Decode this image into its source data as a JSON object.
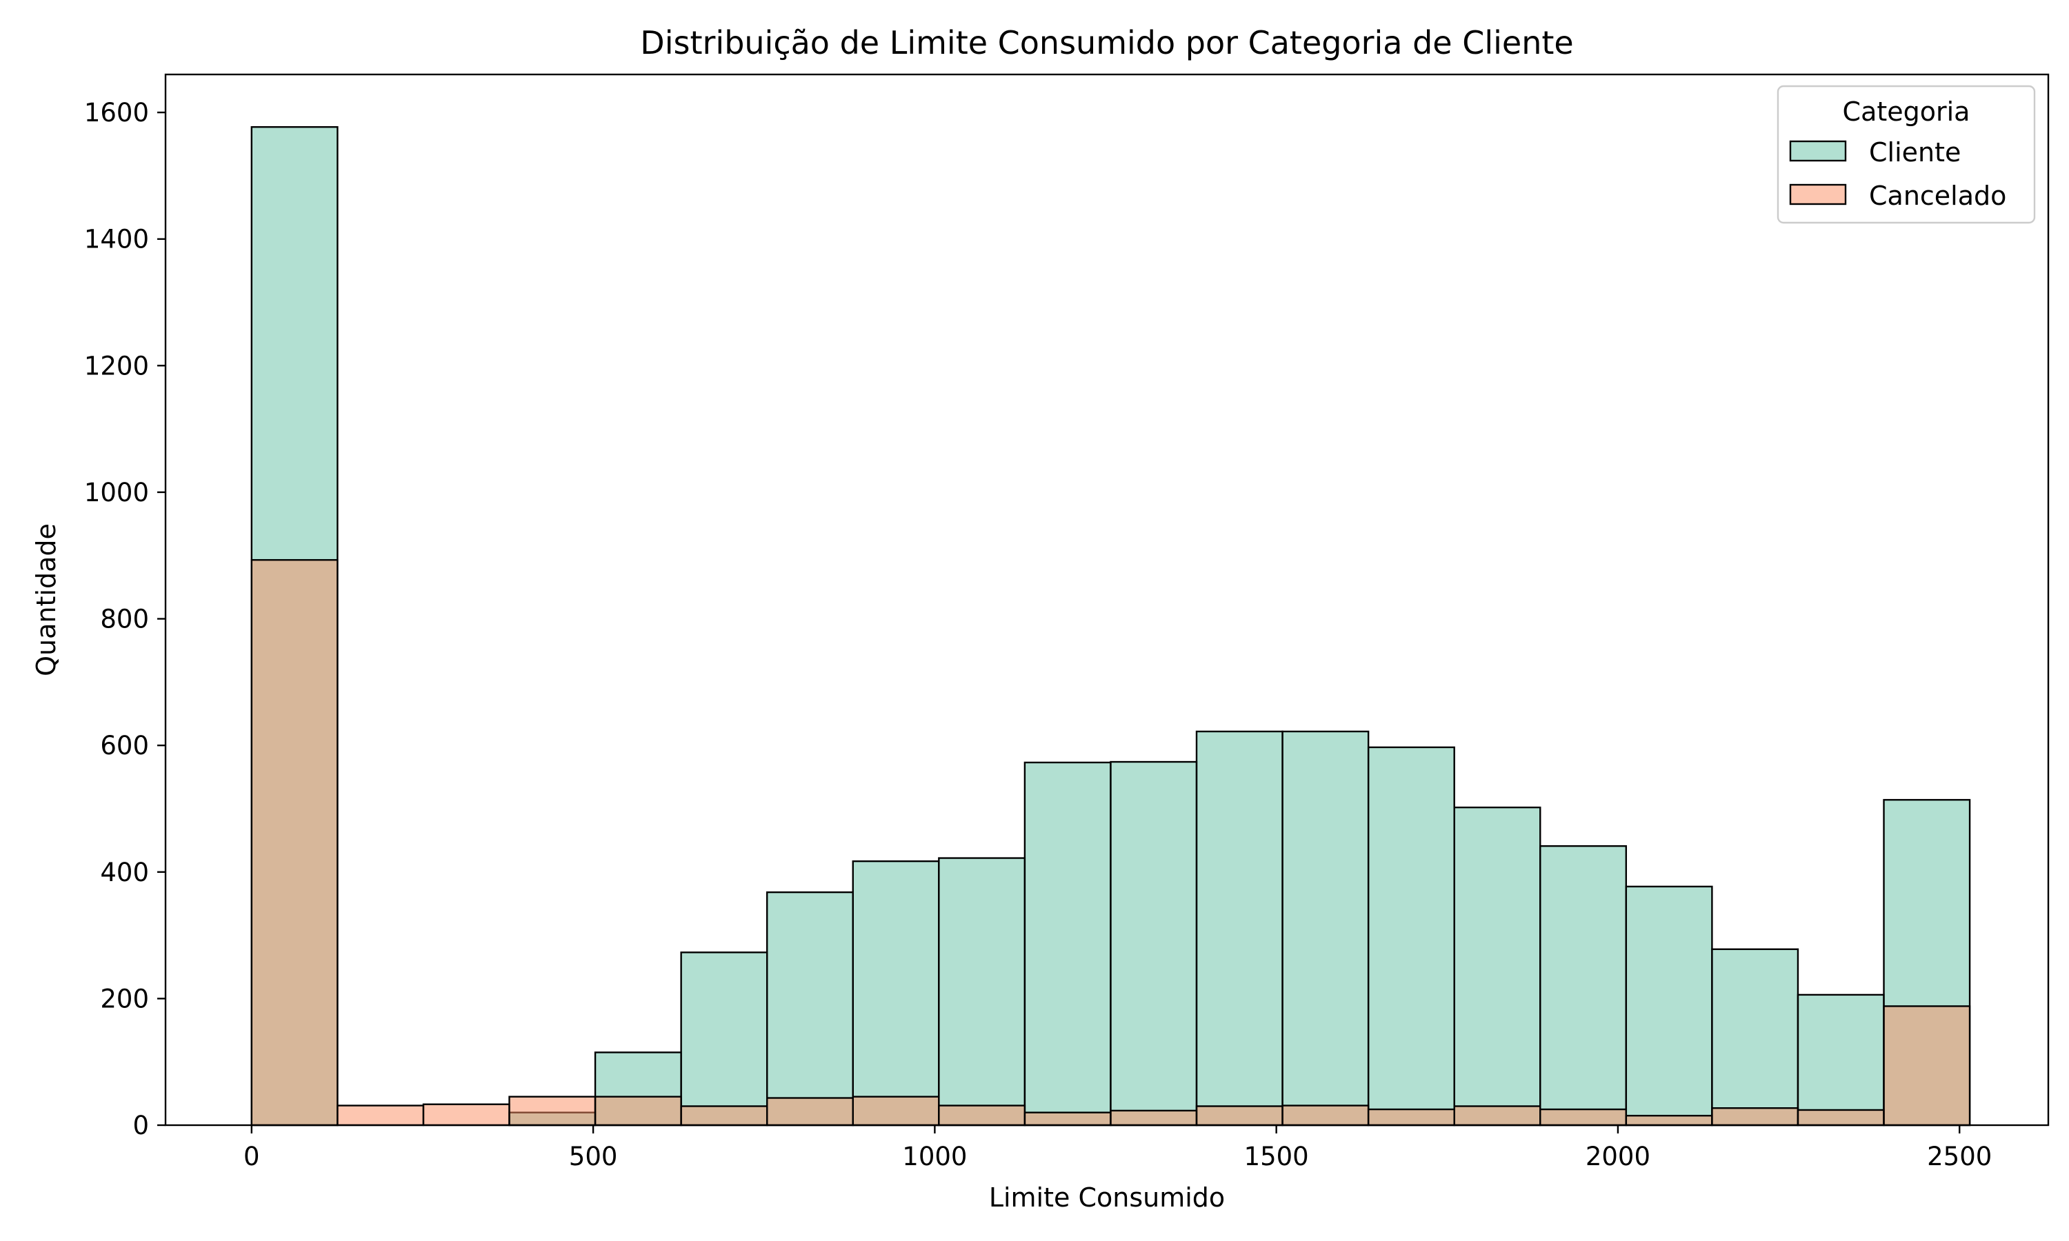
{
  "chart_data": {
    "type": "bar",
    "subtype": "overlapping-histogram",
    "title": "Distribuição de Limite Consumido por Categoria de Cliente",
    "xlabel": "Limite Consumido",
    "ylabel": "Quantidade",
    "xlim": [
      -126,
      2630
    ],
    "ylim": [
      0,
      1660
    ],
    "x_ticks": [
      0,
      500,
      1000,
      1500,
      2000,
      2500
    ],
    "y_ticks": [
      0,
      200,
      400,
      600,
      800,
      1000,
      1200,
      1400,
      1600
    ],
    "grid": false,
    "legend": {
      "title": "Categoria",
      "placement": "top-right"
    },
    "bin_edges": [
      0,
      125.75,
      251.5,
      377.25,
      503,
      628.75,
      754.5,
      880.25,
      1006,
      1131.75,
      1257.5,
      1383.25,
      1509,
      1634.75,
      1760.5,
      1886.25,
      2012,
      2137.75,
      2263.5,
      2389.25,
      2515
    ],
    "series": [
      {
        "name": "Cliente",
        "color": "#66c2a5",
        "values": [
          1577,
          0,
          0,
          20,
          115,
          273,
          368,
          417,
          422,
          573,
          574,
          622,
          622,
          597,
          502,
          441,
          377,
          278,
          206,
          514
        ]
      },
      {
        "name": "Cancelado",
        "color": "#fc8d62",
        "values": [
          893,
          31,
          33,
          45,
          45,
          30,
          43,
          45,
          31,
          20,
          23,
          30,
          31,
          25,
          30,
          25,
          15,
          27,
          24,
          188
        ]
      }
    ]
  }
}
